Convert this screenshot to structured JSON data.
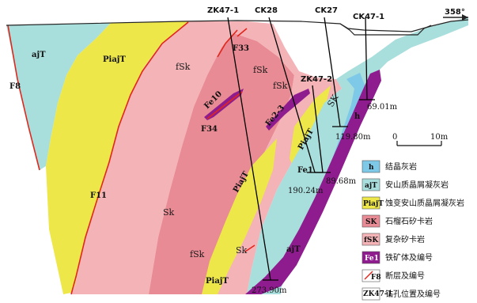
{
  "orientation": "358°",
  "scale_bar": {
    "start": "0",
    "end": "10m"
  },
  "units": {
    "ajT": "ajT",
    "PiajT": "PiajT",
    "fSk": "fSk",
    "Sk": "Sk",
    "SK": "SK",
    "h": "h",
    "Fe1": "Fe1",
    "Fe2_3": "Fe2-3",
    "Fe10": "Fe10"
  },
  "faults": [
    "F8",
    "F11",
    "F33",
    "F34"
  ],
  "boreholes": [
    {
      "id": "ZK47-1",
      "depth": "273.90m"
    },
    {
      "id": "CK28",
      "depth": "190.24m"
    },
    {
      "id": "ZK47-2",
      "depth": "89.68m"
    },
    {
      "id": "CK27",
      "depth": "119.80m"
    },
    {
      "id": "CK47-1",
      "depth": "69.01m"
    }
  ],
  "legend": [
    {
      "symbol": "h",
      "label": "结晶灰岩",
      "color": "#7ec8e8"
    },
    {
      "symbol": "ajT",
      "label": "安山质晶屑凝灰岩",
      "color": "#a8dedc"
    },
    {
      "symbol": "PiajT",
      "label": "蚀变安山质晶屑凝灰岩",
      "color": "#ede74a"
    },
    {
      "symbol": "SK",
      "label": "石榴石矽卡岩",
      "color": "#e98b94"
    },
    {
      "symbol": "fSK",
      "label": "复杂矽卡岩",
      "color": "#f3b3b7"
    },
    {
      "symbol": "Fe1",
      "label": "铁矿体及编号",
      "color": "#8f1c8e"
    },
    {
      "symbol": "F8",
      "label": "断层及编号",
      "color": "#e1261c"
    },
    {
      "symbol": "ZK47-1",
      "label": "钻孔位置及编号",
      "color": "#000000"
    }
  ]
}
